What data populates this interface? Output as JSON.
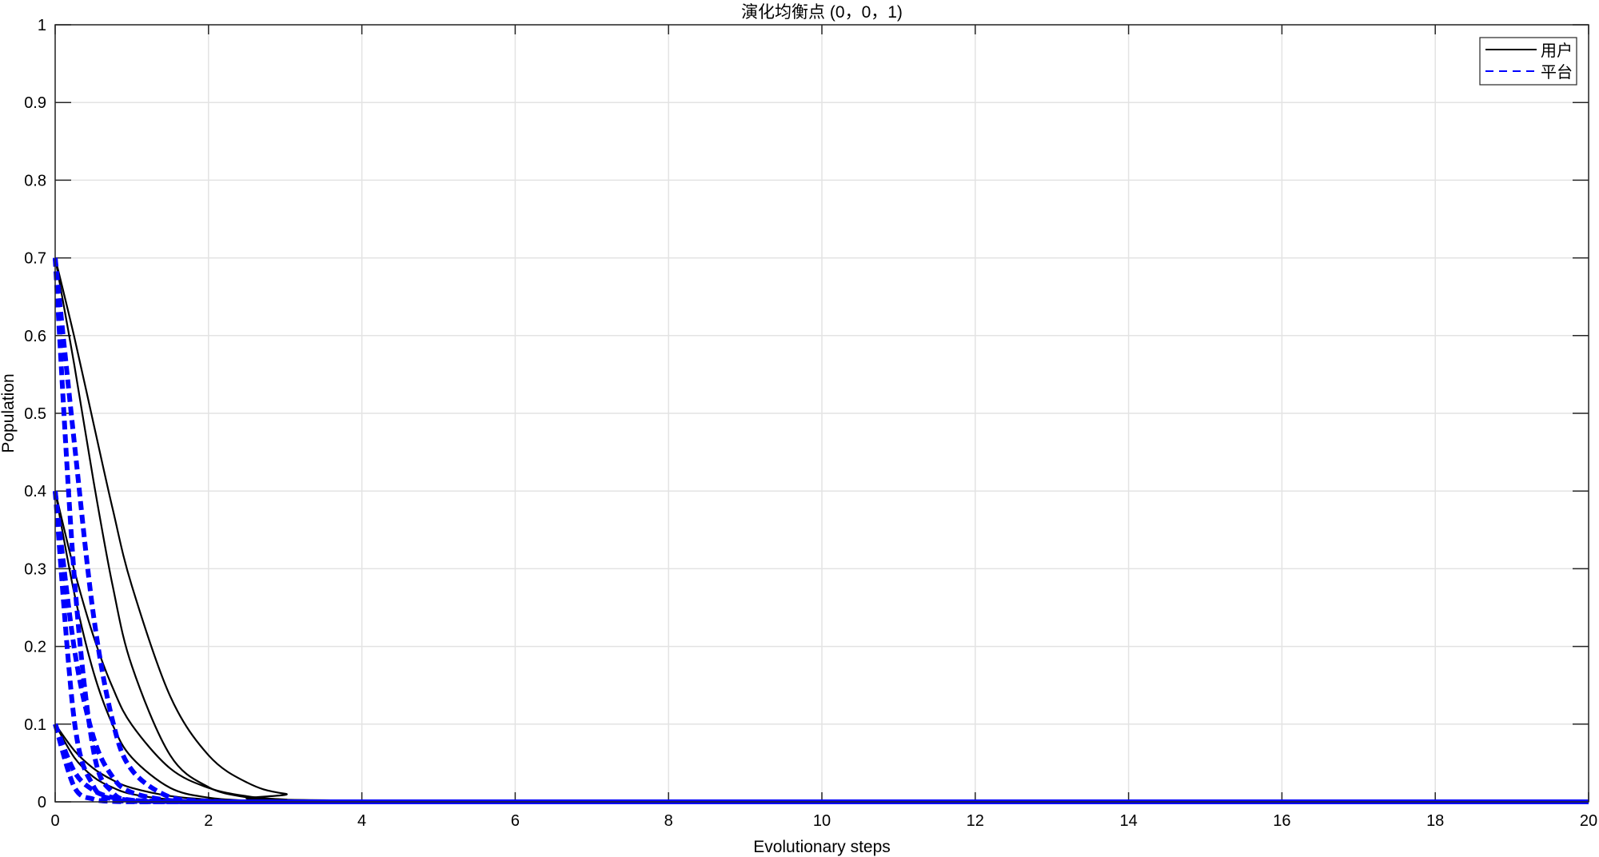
{
  "chart_data": {
    "type": "line",
    "title": "演化均衡点 (0，0，1)",
    "xlabel": "Evolutionary steps",
    "ylabel": "Population",
    "xlim": [
      0,
      20
    ],
    "ylim": [
      0,
      1
    ],
    "grid": true,
    "legend_placement": "top-right",
    "xticks": [
      "0",
      "2",
      "4",
      "6",
      "8",
      "10",
      "12",
      "14",
      "16",
      "18",
      "20"
    ],
    "yticks": [
      "0",
      "0.1",
      "0.2",
      "0.3",
      "0.4",
      "0.5",
      "0.6",
      "0.7",
      "0.8",
      "0.9",
      "1"
    ],
    "legend": [
      {
        "name": "用户",
        "color": "#000000",
        "style": "solid"
      },
      {
        "name": "平台",
        "color": "#0000ff",
        "style": "dashed"
      }
    ],
    "x": [
      0,
      0.25,
      0.5,
      0.75,
      1,
      1.5,
      2,
      2.5,
      3,
      4,
      20
    ],
    "series": [
      {
        "group": "用户",
        "values": [
          0.7,
          0.598,
          0.487,
          0.377,
          0.278,
          0.136,
          0.06,
          0.025,
          0.0104,
          0.0017,
          0
        ]
      },
      {
        "group": "用户",
        "values": [
          0.7,
          0.562,
          0.413,
          0.278,
          0.175,
          0.06,
          0.019,
          0.0058,
          0.0017,
          0.0002,
          0
        ]
      },
      {
        "group": "用户",
        "values": [
          0.4,
          0.298,
          0.213,
          0.147,
          0.099,
          0.043,
          0.018,
          0.0073,
          0.003,
          0.0005,
          0
        ]
      },
      {
        "group": "用户",
        "values": [
          0.4,
          0.268,
          0.167,
          0.099,
          0.057,
          0.018,
          0.0054,
          0.0017,
          0.0005,
          0,
          0
        ]
      },
      {
        "group": "用户",
        "values": [
          0.1,
          0.066,
          0.043,
          0.028,
          0.018,
          0.0075,
          0.003,
          0.0012,
          0.0005,
          0.0001,
          0
        ]
      },
      {
        "group": "用户",
        "values": [
          0.1,
          0.057,
          0.032,
          0.0184,
          0.01,
          0.003,
          0.0009,
          0.0003,
          0.0001,
          0,
          0
        ]
      },
      {
        "group": "平台",
        "values": [
          0.7,
          0.462,
          0.24,
          0.104,
          0.041,
          0.0058,
          0.0008,
          0,
          0,
          0,
          0
        ]
      },
      {
        "group": "平台",
        "values": [
          0.7,
          0.289,
          0.066,
          0.012,
          0.0021,
          0,
          0,
          0,
          0,
          0,
          0
        ]
      },
      {
        "group": "平台",
        "values": [
          0.4,
          0.197,
          0.083,
          0.032,
          0.012,
          0.0017,
          0.0002,
          0,
          0,
          0,
          0
        ]
      },
      {
        "group": "平台",
        "values": [
          0.4,
          0.104,
          0.02,
          0.0035,
          0.0006,
          0,
          0,
          0,
          0,
          0,
          0
        ]
      },
      {
        "group": "平台",
        "values": [
          0.1,
          0.039,
          0.0149,
          0.0055,
          0.002,
          0.0003,
          0,
          0,
          0,
          0,
          0
        ]
      },
      {
        "group": "平台",
        "values": [
          0.1,
          0.019,
          0.0034,
          0.0006,
          0.0001,
          0,
          0,
          0,
          0,
          0,
          0
        ]
      }
    ]
  }
}
